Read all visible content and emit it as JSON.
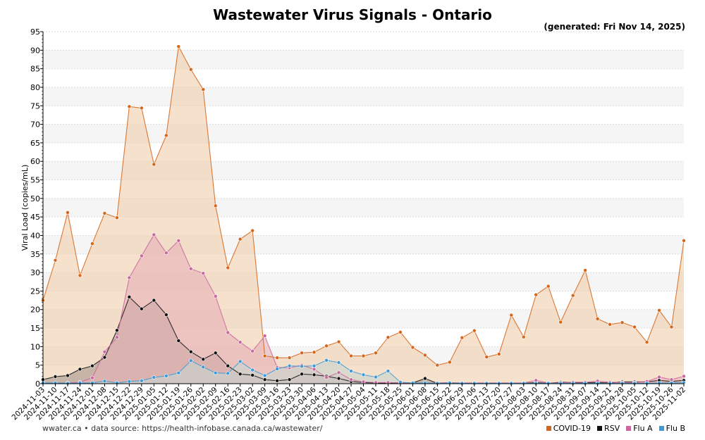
{
  "title": "Wastewater Virus Signals - Ontario",
  "generated": "(generated: Fri Nov 14, 2025)",
  "source": "wwater.ca • data source: https://health-infobase.canada.ca/wastewater/",
  "colors": {
    "covid": "#d4651a",
    "covid_fill": "#f0cfae",
    "rsv": "#111111",
    "rsv_fill": "#a89890",
    "flua": "#c9679f",
    "flua_fill": "#e6b2b6",
    "flub": "#3d9ad6",
    "flub_fill": "#c8d3cf"
  },
  "chart_data": {
    "type": "area",
    "title": "Wastewater Virus Signals - Ontario",
    "xlabel": "",
    "ylabel": "Viral Load (copies/mL)",
    "ylim": [
      0,
      95
    ],
    "yticks": [
      0,
      5,
      10,
      15,
      20,
      25,
      30,
      35,
      40,
      45,
      50,
      55,
      60,
      65,
      70,
      75,
      80,
      85,
      90,
      95
    ],
    "grid": "horizontal bands",
    "legend": "bottom-right",
    "x": [
      "2024-11-03",
      "2024-11-10",
      "2024-11-17",
      "2024-11-24",
      "2024-12-01",
      "2024-12-08",
      "2024-12-15",
      "2024-12-22",
      "2024-12-29",
      "2025-01-05",
      "2025-01-12",
      "2025-01-19",
      "2025-01-26",
      "2025-02-02",
      "2025-02-09",
      "2025-02-16",
      "2025-02-23",
      "2025-03-02",
      "2025-03-09",
      "2025-03-16",
      "2025-03-23",
      "2025-03-30",
      "2025-04-06",
      "2025-04-13",
      "2025-04-20",
      "2025-04-27",
      "2025-05-04",
      "2025-05-11",
      "2025-05-18",
      "2025-05-25",
      "2025-06-01",
      "2025-06-08",
      "2025-06-15",
      "2025-06-22",
      "2025-06-29",
      "2025-07-06",
      "2025-07-13",
      "2025-07-20",
      "2025-07-27",
      "2025-08-03",
      "2025-08-10",
      "2025-08-17",
      "2025-08-24",
      "2025-08-31",
      "2025-09-07",
      "2025-09-14",
      "2025-09-21",
      "2025-09-28",
      "2025-10-05",
      "2025-10-12",
      "2025-10-19",
      "2025-10-26",
      "2025-11-02"
    ],
    "series": [
      {
        "name": "COVID-19",
        "color_key": "covid",
        "values": [
          22.5,
          33.3,
          46.2,
          29.2,
          37.8,
          46.0,
          44.8,
          74.8,
          74.4,
          59.2,
          67.0,
          91.0,
          84.8,
          79.4,
          48.0,
          31.3,
          39.0,
          41.3,
          7.5,
          7.0,
          7.0,
          8.3,
          8.5,
          10.2,
          11.3,
          7.5,
          7.5,
          8.3,
          12.5,
          13.9,
          9.8,
          7.7,
          5.0,
          5.8,
          12.4,
          14.3,
          7.2,
          8.0,
          18.5,
          12.6,
          24.0,
          26.3,
          16.6,
          23.8,
          30.6,
          17.5,
          16.0,
          16.5,
          15.3,
          11.2,
          19.8,
          15.3,
          38.6
        ]
      },
      {
        "name": "RSV",
        "color_key": "rsv",
        "values": [
          1.1,
          1.9,
          2.2,
          3.9,
          4.8,
          7.1,
          14.4,
          23.4,
          20.2,
          22.5,
          18.6,
          11.6,
          8.6,
          6.6,
          8.3,
          4.8,
          2.6,
          2.3,
          1.1,
          0.8,
          1.1,
          2.6,
          2.4,
          2.0,
          1.4,
          0.6,
          0.3,
          0.2,
          0.2,
          0.2,
          0.2,
          1.4,
          0.1,
          0.1,
          0.1,
          0.1,
          0.1,
          0.1,
          0.1,
          0.1,
          0.3,
          0.1,
          0.4,
          0.3,
          0.3,
          0.3,
          0.2,
          0.5,
          0.5,
          0.5,
          0.9,
          0.6,
          0.9
        ]
      },
      {
        "name": "Flu A",
        "color_key": "flua",
        "values": [
          0.2,
          0.1,
          0.2,
          0.4,
          1.6,
          8.6,
          12.5,
          28.6,
          34.5,
          40.2,
          35.3,
          38.6,
          31.0,
          29.8,
          23.6,
          13.8,
          11.2,
          8.8,
          12.9,
          4.4,
          4.3,
          5.0,
          3.9,
          1.7,
          3.0,
          1.1,
          0.5,
          0.3,
          0.3,
          0.2,
          0.2,
          0.1,
          0.2,
          0.3,
          0.2,
          0.2,
          0.2,
          0.2,
          0.2,
          0.2,
          0.9,
          0.2,
          0.2,
          0.4,
          0.4,
          0.7,
          0.4,
          0.3,
          0.3,
          0.6,
          1.8,
          1.1,
          2.0
        ]
      },
      {
        "name": "Flu B",
        "color_key": "flub",
        "values": [
          0.2,
          0.2,
          0.1,
          0.2,
          0.2,
          0.7,
          0.2,
          0.6,
          0.8,
          1.7,
          2.1,
          2.9,
          6.2,
          4.5,
          2.9,
          2.8,
          6.0,
          3.7,
          2.2,
          4.0,
          4.8,
          4.7,
          4.8,
          6.3,
          5.7,
          3.4,
          2.4,
          1.8,
          3.4,
          0.4,
          0.2,
          0.2,
          0.1,
          0.2,
          0.1,
          0.1,
          0.1,
          0.1,
          0.1,
          0.1,
          0.1,
          0.1,
          0.1,
          0.1,
          0.1,
          0.1,
          0.1,
          0.1,
          0.1,
          0.1,
          0.2,
          0.2,
          0.3
        ]
      }
    ]
  }
}
